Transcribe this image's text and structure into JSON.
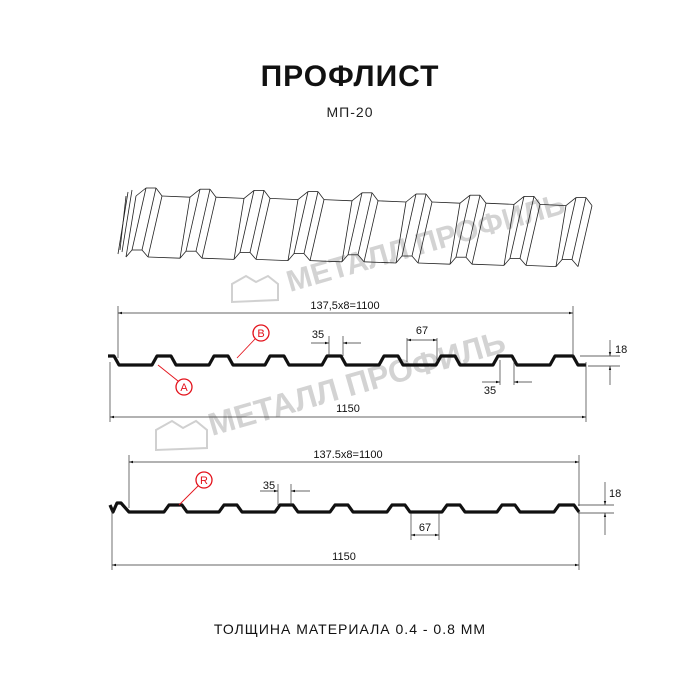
{
  "header": {
    "title": "ПРОФЛИСТ",
    "model": "МП-20"
  },
  "watermark": "МЕТАЛЛ ПРОФИЛЬ",
  "profile_1": {
    "pitch_dim": "137,5x8=1100",
    "total_width": "1150",
    "crest_width": "35",
    "valley_width": "67",
    "bottom_crest_width": "35",
    "height": "18",
    "marker_a": "A",
    "marker_b": "B"
  },
  "profile_2": {
    "pitch_dim": "137.5x8=1100",
    "total_width": "1150",
    "crest_width": "35",
    "valley_width": "67",
    "height": "18",
    "marker_r": "R"
  },
  "footer": {
    "thickness": "ТОЛЩИНА МАТЕРИАЛА 0.4 - 0.8 ММ"
  },
  "colors": {
    "line": "#111111",
    "marker": "#e3121b",
    "watermark": "#c8c8c8"
  }
}
